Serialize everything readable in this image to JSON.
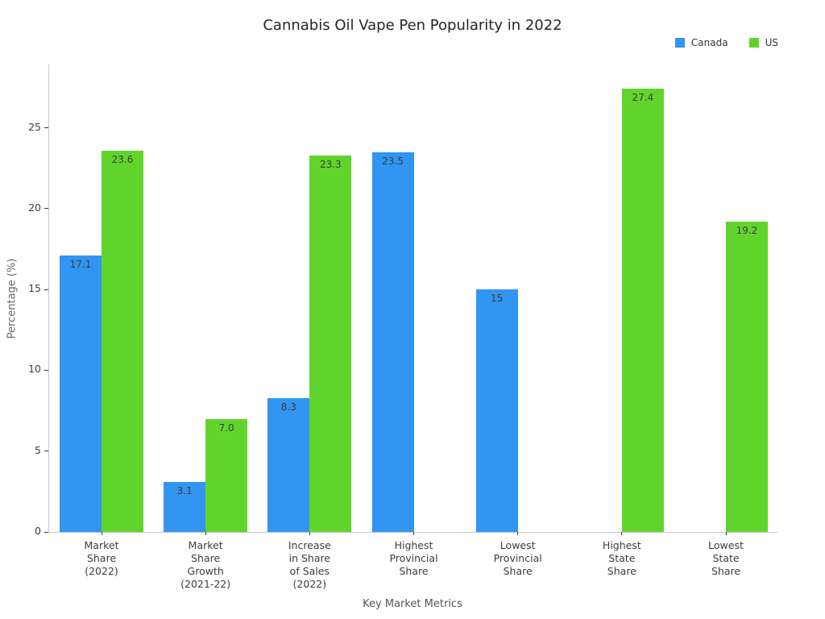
{
  "chart_data": {
    "type": "bar",
    "title": "Cannabis Oil Vape Pen Popularity in 2022",
    "xlabel": "Key Market Metrics",
    "ylabel": "Percentage (%)",
    "ylim": [
      0,
      28.9
    ],
    "yticks": [
      0,
      5,
      10,
      15,
      20,
      25
    ],
    "grid": false,
    "legend_position": "top-right",
    "background": "#ffffff",
    "categories": [
      [
        "Market",
        "Share",
        "(2022)"
      ],
      [
        "Market",
        "Share",
        "Growth",
        "(2021-22)"
      ],
      [
        "Increase",
        "in Share",
        "of Sales",
        "(2022)"
      ],
      [
        "Highest",
        "Provincial",
        "Share"
      ],
      [
        "Lowest",
        "Provincial",
        "Share"
      ],
      [
        "Highest",
        "State",
        "Share"
      ],
      [
        "Lowest",
        "State",
        "Share"
      ]
    ],
    "series": [
      {
        "name": "Canada",
        "color": "#3195f1",
        "values": [
          17.1,
          3.1,
          8.3,
          23.5,
          15,
          null,
          null
        ],
        "value_labels": [
          "17.1",
          "3.1",
          "8.3",
          "23.5",
          "15",
          null,
          null
        ]
      },
      {
        "name": "US",
        "color": "#61d42c",
        "values": [
          23.6,
          7.0,
          23.3,
          null,
          null,
          27.4,
          19.2
        ],
        "value_labels": [
          "23.6",
          "7.0",
          "23.3",
          null,
          null,
          "27.4",
          "19.2"
        ]
      }
    ]
  }
}
